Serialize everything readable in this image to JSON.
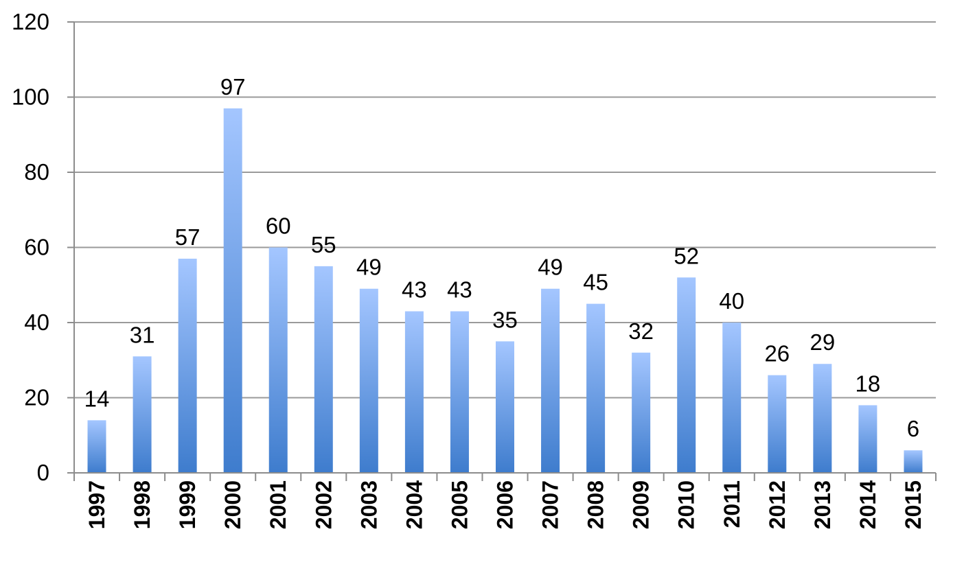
{
  "chart_data": {
    "type": "bar",
    "categories": [
      "1997",
      "1998",
      "1999",
      "2000",
      "2001",
      "2002",
      "2003",
      "2004",
      "2005",
      "2006",
      "2007",
      "2008",
      "2009",
      "2010",
      "2011",
      "2012",
      "2013",
      "2014",
      "2015"
    ],
    "series": [
      {
        "values": [
          14,
          31,
          57,
          97,
          60,
          55,
          49,
          43,
          43,
          35,
          49,
          45,
          32,
          52,
          40,
          26,
          29,
          18,
          6
        ]
      }
    ],
    "ylim": [
      0,
      120
    ],
    "yticks": [
      0,
      20,
      40,
      60,
      80,
      100,
      120
    ],
    "grid": true,
    "legend": "none",
    "data_labels": true,
    "x_tick_rotation": "vertical",
    "colors": {
      "bar_top": "#a4c6ff",
      "bar_bottom": "#3e7ccd",
      "gridline": "#9a9a9a",
      "axis": "#8c8c8c"
    }
  }
}
